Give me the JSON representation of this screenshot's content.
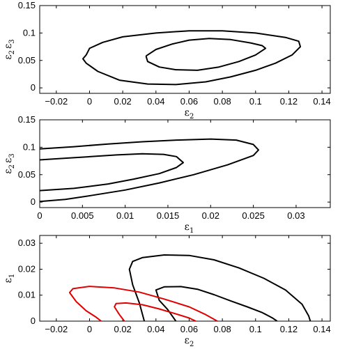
{
  "chart_data": [
    {
      "type": "line",
      "title": "",
      "xlabel": "ε",
      "xlabel_sub": "2",
      "ylabel": "ε",
      "ylabel_sub": "2",
      "ylabel2": "ε",
      "ylabel2_sub": "3",
      "xlim": [
        -0.03,
        0.145
      ],
      "ylim": [
        -0.01,
        0.15
      ],
      "xticks": [
        -0.02,
        0,
        0.02,
        0.04,
        0.06,
        0.08,
        0.1,
        0.12,
        0.14
      ],
      "xtick_labels": [
        "−0.02",
        "0",
        "0.02",
        "0.04",
        "0.06",
        "0.08",
        "0.1",
        "0.12",
        "0.14"
      ],
      "yticks": [
        0,
        0.05,
        0.1,
        0.15
      ],
      "ytick_labels": [
        "0",
        "0.05",
        "0.1",
        "0.15"
      ],
      "series": [
        {
          "color": "#000000",
          "x": [
            -0.002,
            0.0,
            0.008,
            0.02,
            0.04,
            0.06,
            0.08,
            0.1,
            0.118,
            0.126,
            0.127,
            0.122,
            0.112,
            0.1,
            0.085,
            0.07,
            0.052,
            0.035,
            0.018,
            0.005,
            -0.002,
            -0.004,
            -0.002
          ],
          "y": [
            0.06,
            0.072,
            0.083,
            0.093,
            0.1,
            0.104,
            0.104,
            0.1,
            0.092,
            0.085,
            0.075,
            0.06,
            0.045,
            0.032,
            0.02,
            0.011,
            0.006,
            0.007,
            0.014,
            0.03,
            0.045,
            0.053,
            0.06
          ]
        },
        {
          "color": "#000000",
          "x": [
            0.034,
            0.04,
            0.05,
            0.06,
            0.072,
            0.085,
            0.097,
            0.104,
            0.106,
            0.1,
            0.09,
            0.078,
            0.065,
            0.052,
            0.042,
            0.035,
            0.034
          ],
          "y": [
            0.058,
            0.07,
            0.08,
            0.087,
            0.09,
            0.088,
            0.082,
            0.077,
            0.072,
            0.06,
            0.048,
            0.038,
            0.032,
            0.033,
            0.038,
            0.048,
            0.058
          ]
        }
      ]
    },
    {
      "type": "line",
      "title": "",
      "xlabel": "ε",
      "xlabel_sub": "1",
      "ylabel": "ε",
      "ylabel_sub": "2",
      "ylabel2": "ε",
      "ylabel2_sub": "3",
      "xlim": [
        0,
        0.034
      ],
      "ylim": [
        -0.01,
        0.15
      ],
      "xticks": [
        0,
        0.005,
        0.01,
        0.015,
        0.02,
        0.025,
        0.03
      ],
      "xtick_labels": [
        "0",
        "0.005",
        "0.01",
        "0.015",
        "0.02",
        "0.025",
        "0.03"
      ],
      "yticks": [
        0,
        0.05,
        0.1,
        0.15
      ],
      "ytick_labels": [
        "0",
        "0.05",
        "0.1",
        "0.15"
      ],
      "series": [
        {
          "color": "#000000",
          "x": [
            0,
            0.004,
            0.008,
            0.012,
            0.016,
            0.02,
            0.023,
            0.025,
            0.0256,
            0.025,
            0.022,
            0.018,
            0.014,
            0.01,
            0.006,
            0.003,
            0.0
          ],
          "y": [
            0.097,
            0.101,
            0.106,
            0.11,
            0.113,
            0.115,
            0.113,
            0.105,
            0.095,
            0.085,
            0.068,
            0.05,
            0.035,
            0.022,
            0.012,
            0.005,
            0.001
          ]
        },
        {
          "color": "#000000",
          "x": [
            0,
            0.003,
            0.006,
            0.009,
            0.012,
            0.0145,
            0.016,
            0.0168,
            0.016,
            0.014,
            0.011,
            0.008,
            0.004,
            0.0
          ],
          "y": [
            0.077,
            0.08,
            0.083,
            0.086,
            0.088,
            0.087,
            0.083,
            0.072,
            0.063,
            0.052,
            0.042,
            0.033,
            0.025,
            0.021
          ]
        }
      ]
    },
    {
      "type": "line",
      "title": "",
      "xlabel": "ε",
      "xlabel_sub": "2",
      "ylabel": "ε",
      "ylabel_sub": "1",
      "xlim": [
        -0.03,
        0.145
      ],
      "ylim": [
        0,
        0.033
      ],
      "xticks": [
        -0.02,
        0,
        0.02,
        0.04,
        0.06,
        0.08,
        0.1,
        0.12,
        0.14
      ],
      "xtick_labels": [
        "−0.02",
        "0",
        "0.02",
        "0.04",
        "0.06",
        "0.08",
        "0.1",
        "0.12",
        "0.14"
      ],
      "yticks": [
        0,
        0.01,
        0.02,
        0.03
      ],
      "ytick_labels": [
        "0",
        "0.01",
        "0.02",
        "0.03"
      ],
      "series": [
        {
          "color": "#000000",
          "x": [
            0.033,
            0.03,
            0.026,
            0.024,
            0.026,
            0.032,
            0.045,
            0.06,
            0.075,
            0.09,
            0.105,
            0.118,
            0.128,
            0.132,
            0.133
          ],
          "y": [
            0.0,
            0.007,
            0.014,
            0.02,
            0.023,
            0.0245,
            0.0255,
            0.0253,
            0.0236,
            0.0205,
            0.0165,
            0.012,
            0.0065,
            0.002,
            0.0
          ]
        },
        {
          "color": "#000000",
          "x": [
            0.052,
            0.047,
            0.042,
            0.04,
            0.045,
            0.055,
            0.065,
            0.075,
            0.085,
            0.095,
            0.104,
            0.11,
            0.113
          ],
          "y": [
            0.0,
            0.0045,
            0.008,
            0.012,
            0.0132,
            0.0133,
            0.0123,
            0.0102,
            0.0078,
            0.0055,
            0.0033,
            0.0013,
            0.0
          ]
        },
        {
          "color": "#e00000",
          "x": [
            0.007,
            0.004,
            -0.002,
            -0.008,
            -0.012,
            -0.01,
            0.0,
            0.015,
            0.03,
            0.045,
            0.06,
            0.07,
            0.077
          ],
          "y": [
            0.0,
            0.0015,
            0.004,
            0.0075,
            0.011,
            0.0125,
            0.0134,
            0.0128,
            0.0112,
            0.0085,
            0.0055,
            0.0025,
            0.0
          ]
        },
        {
          "color": "#e00000",
          "x": [
            0.021,
            0.018,
            0.015,
            0.016,
            0.022,
            0.032,
            0.042,
            0.052,
            0.06,
            0.064
          ],
          "y": [
            0.0,
            0.0025,
            0.0055,
            0.0068,
            0.007,
            0.0063,
            0.0047,
            0.0028,
            0.0012,
            0.0
          ]
        }
      ]
    }
  ]
}
